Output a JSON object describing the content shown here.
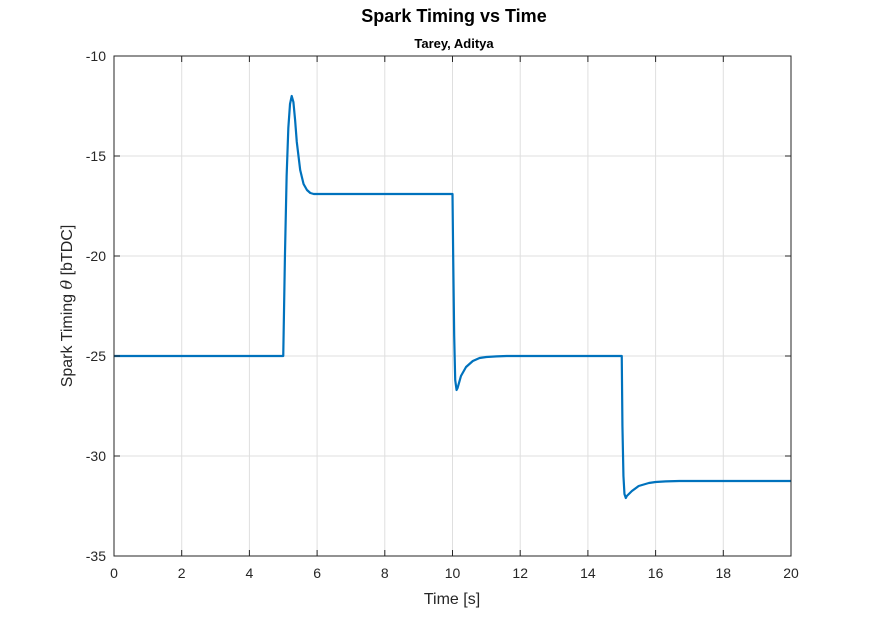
{
  "chart_data": {
    "type": "line",
    "title": "Spark Timing vs Time",
    "subtitle": "Tarey, Aditya",
    "xlabel": "Time [s]",
    "ylabel_prefix": "Spark Timing ",
    "ylabel_symbol": "θ",
    "ylabel_suffix": " [bTDC]",
    "xlim": [
      0,
      20
    ],
    "ylim": [
      -35,
      -10
    ],
    "xticks": [
      0,
      2,
      4,
      6,
      8,
      10,
      12,
      14,
      16,
      18,
      20
    ],
    "yticks": [
      -35,
      -30,
      -25,
      -20,
      -15,
      -10
    ],
    "grid": true,
    "color": "#0072BD",
    "series": [
      {
        "x": [
          0,
          5.0,
          5.05,
          5.1,
          5.15,
          5.2,
          5.25,
          5.3,
          5.35,
          5.4,
          5.5,
          5.6,
          5.7,
          5.8,
          5.9,
          6.0,
          6.2,
          6.5,
          7.0,
          8.0,
          9.0,
          10.0,
          10.02,
          10.05,
          10.08,
          10.12,
          10.15,
          10.25,
          10.4,
          10.6,
          10.8,
          11.0,
          11.3,
          11.6,
          12.0,
          13.0,
          14.0,
          15.0,
          15.02,
          15.05,
          15.08,
          15.12,
          15.15,
          15.3,
          15.5,
          15.8,
          16.0,
          16.3,
          16.7,
          17.0,
          18.0,
          19.0,
          20.0
        ],
        "y": [
          -25.0,
          -25.0,
          -20.0,
          -16.0,
          -13.6,
          -12.4,
          -12.0,
          -12.3,
          -13.2,
          -14.3,
          -15.7,
          -16.4,
          -16.7,
          -16.85,
          -16.9,
          -16.9,
          -16.9,
          -16.9,
          -16.9,
          -16.9,
          -16.9,
          -16.9,
          -20.0,
          -24.0,
          -26.2,
          -26.7,
          -26.6,
          -26.0,
          -25.55,
          -25.25,
          -25.1,
          -25.05,
          -25.02,
          -25.0,
          -25.0,
          -25.0,
          -25.0,
          -25.0,
          -28.5,
          -31.0,
          -31.9,
          -32.1,
          -32.0,
          -31.75,
          -31.5,
          -31.35,
          -31.3,
          -31.27,
          -31.25,
          -31.25,
          -31.25,
          -31.25,
          -31.25
        ]
      }
    ]
  }
}
